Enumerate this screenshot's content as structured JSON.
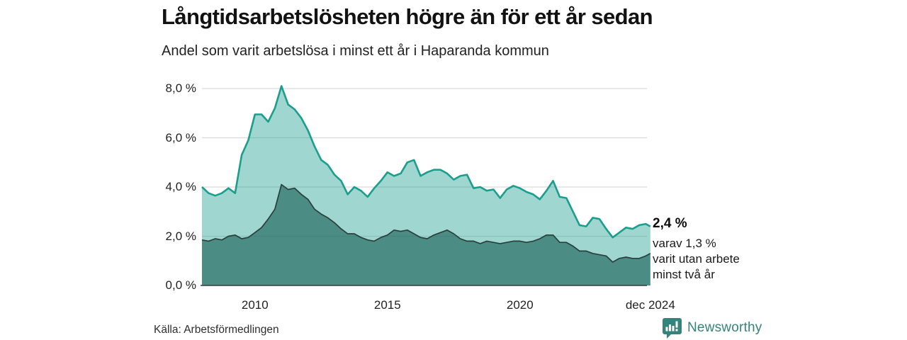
{
  "header": {
    "title": "Långtidsarbetslösheten högre än för ett år sedan",
    "subtitle": "Andel som varit arbetslösa i minst ett år i Haparanda kommun"
  },
  "annotation": {
    "value_label": "2,4 %",
    "lines": [
      "varav 1,3 %",
      "varit utan arbete",
      "minst två år"
    ]
  },
  "footer": {
    "source": "Källa: Arbetsförmedlingen",
    "brand": "Newsworthy"
  },
  "colors": {
    "series1_line": "#1b9e8e",
    "series1_fill": "rgba(27,158,142,0.42)",
    "series2_line": "#2b3f3b",
    "series2_fill": "rgba(30,100,90,0.65)",
    "gridline": "#d9d9d9",
    "axis": "#3a3a3a",
    "brand_teal": "#35837a"
  },
  "chart_data": {
    "type": "area",
    "title": "Långtidsarbetslösheten högre än för ett år sedan",
    "subtitle": "Andel som varit arbetslösa i minst ett år i Haparanda kommun",
    "unit": "%",
    "ylim": [
      0,
      8.4
    ],
    "grid": true,
    "y_ticks": [
      {
        "value": 0,
        "label": "0,0 %"
      },
      {
        "value": 2,
        "label": "2,0 %"
      },
      {
        "value": 4,
        "label": "4,0 %"
      },
      {
        "value": 6,
        "label": "6,0 %"
      },
      {
        "value": 8,
        "label": "8,0 %"
      }
    ],
    "x_ticks": [
      {
        "year": 2010,
        "label": "2010"
      },
      {
        "year": 2015,
        "label": "2015"
      },
      {
        "year": 2020,
        "label": "2020"
      },
      {
        "year": 2024.92,
        "label": "dec 2024"
      }
    ],
    "x": [
      2008.0,
      2008.25,
      2008.5,
      2008.75,
      2009.0,
      2009.25,
      2009.5,
      2009.75,
      2010.0,
      2010.25,
      2010.5,
      2010.75,
      2011.0,
      2011.25,
      2011.5,
      2011.75,
      2012.0,
      2012.25,
      2012.5,
      2012.75,
      2013.0,
      2013.25,
      2013.5,
      2013.75,
      2014.0,
      2014.25,
      2014.5,
      2014.75,
      2015.0,
      2015.25,
      2015.5,
      2015.75,
      2016.0,
      2016.25,
      2016.5,
      2016.75,
      2017.0,
      2017.25,
      2017.5,
      2017.75,
      2018.0,
      2018.25,
      2018.5,
      2018.75,
      2019.0,
      2019.25,
      2019.5,
      2019.75,
      2020.0,
      2020.25,
      2020.5,
      2020.75,
      2021.0,
      2021.25,
      2021.5,
      2021.75,
      2022.0,
      2022.25,
      2022.5,
      2022.75,
      2023.0,
      2023.25,
      2023.5,
      2023.75,
      2024.0,
      2024.25,
      2024.5,
      2024.75,
      2024.92
    ],
    "series": [
      {
        "name": "Andel som varit arbetslösa i minst ett år",
        "end_label": "2,4 %",
        "values": [
          4.0,
          3.75,
          3.65,
          3.75,
          3.95,
          3.75,
          5.3,
          5.9,
          6.95,
          6.95,
          6.65,
          7.2,
          8.1,
          7.35,
          7.15,
          6.8,
          6.3,
          5.65,
          5.1,
          4.9,
          4.5,
          4.25,
          3.7,
          4.0,
          3.85,
          3.6,
          3.95,
          4.25,
          4.6,
          4.45,
          4.55,
          5.0,
          5.1,
          4.45,
          4.6,
          4.7,
          4.7,
          4.55,
          4.3,
          4.45,
          4.5,
          3.95,
          4.0,
          3.85,
          3.9,
          3.55,
          3.9,
          4.05,
          3.95,
          3.8,
          3.7,
          3.5,
          3.85,
          4.25,
          3.6,
          3.55,
          3.0,
          2.45,
          2.4,
          2.75,
          2.7,
          2.3,
          1.95,
          2.15,
          2.35,
          2.3,
          2.45,
          2.5,
          2.4
        ]
      },
      {
        "name": "varav utan arbete minst två år",
        "end_label": "1,3 %",
        "values": [
          1.85,
          1.8,
          1.9,
          1.85,
          2.0,
          2.05,
          1.9,
          1.95,
          2.15,
          2.35,
          2.7,
          3.1,
          4.1,
          3.9,
          3.95,
          3.7,
          3.5,
          3.1,
          2.9,
          2.75,
          2.55,
          2.3,
          2.1,
          2.1,
          1.95,
          1.85,
          1.8,
          1.95,
          2.05,
          2.25,
          2.2,
          2.25,
          2.1,
          1.95,
          1.9,
          2.05,
          2.15,
          2.25,
          2.1,
          1.9,
          1.8,
          1.8,
          1.7,
          1.8,
          1.75,
          1.7,
          1.75,
          1.8,
          1.8,
          1.75,
          1.8,
          1.9,
          2.05,
          2.05,
          1.75,
          1.75,
          1.6,
          1.4,
          1.4,
          1.3,
          1.25,
          1.2,
          0.95,
          1.1,
          1.15,
          1.1,
          1.1,
          1.2,
          1.3
        ]
      }
    ]
  }
}
